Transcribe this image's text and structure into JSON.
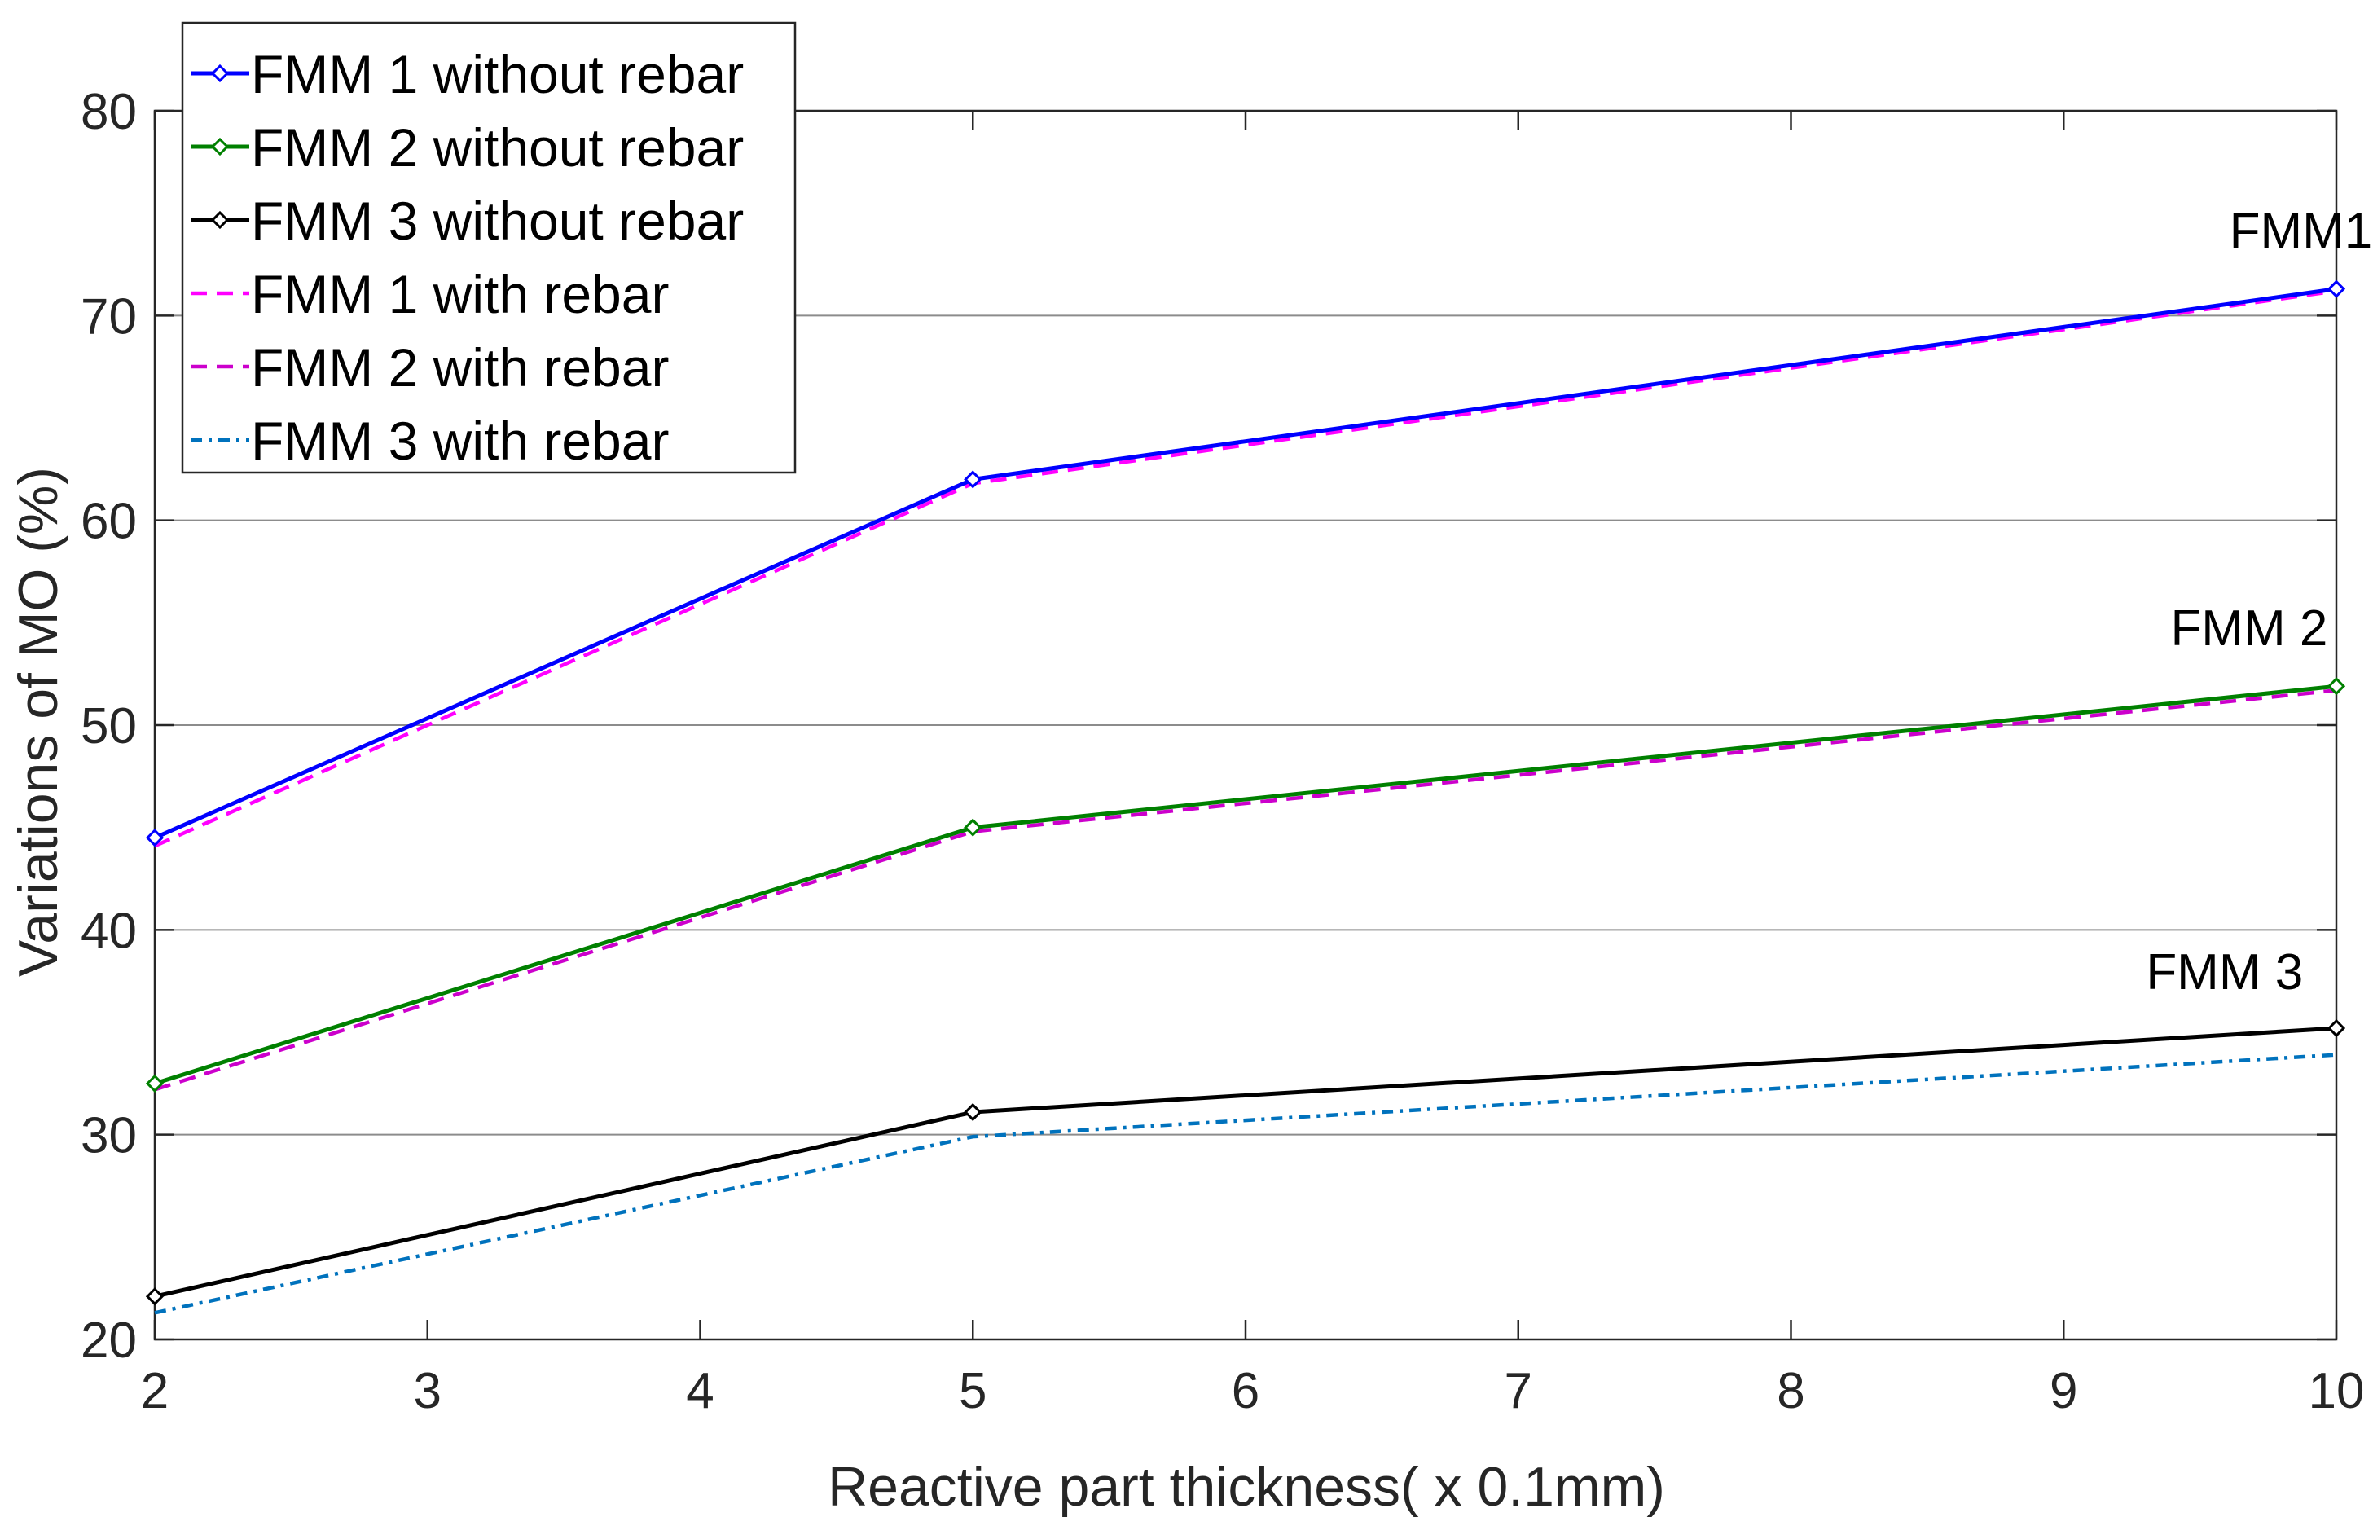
{
  "chart_data": {
    "type": "line",
    "title": "",
    "xlabel": "Reactive part thickness( x 0.1mm)",
    "ylabel": "Variations of MO (%)",
    "xlim": [
      2,
      10
    ],
    "ylim": [
      20,
      80
    ],
    "xticks": [
      2,
      3,
      4,
      5,
      6,
      7,
      8,
      9,
      10
    ],
    "yticks": [
      20,
      30,
      40,
      50,
      60,
      70,
      80
    ],
    "xtick_labels": [
      "2",
      "3",
      "4",
      "5",
      "6",
      "7",
      "8",
      "9",
      "10"
    ],
    "ytick_labels": [
      "20",
      "30",
      "40",
      "50",
      "60",
      "70",
      "80"
    ],
    "grid": "horizontal",
    "legend_position": "top-left",
    "x": [
      2,
      5,
      10
    ],
    "series": [
      {
        "name": "FMM 1 without rebar",
        "values": [
          44.5,
          62.0,
          71.3
        ],
        "color": "#0000ff",
        "style": "solid",
        "marker": "diamond"
      },
      {
        "name": "FMM 2 without rebar",
        "values": [
          32.5,
          45.0,
          51.9
        ],
        "color": "#008000",
        "style": "solid",
        "marker": "diamond"
      },
      {
        "name": "FMM 3 without rebar",
        "values": [
          22.1,
          31.1,
          35.2
        ],
        "color": "#000000",
        "style": "solid",
        "marker": "diamond"
      },
      {
        "name": "FMM 1 with rebar",
        "values": [
          44.1,
          61.8,
          71.2
        ],
        "color": "#ff00ff",
        "style": "dashed",
        "marker": "none"
      },
      {
        "name": "FMM 2 with rebar",
        "values": [
          32.2,
          44.8,
          51.7
        ],
        "color": "#cc00cc",
        "style": "dashed",
        "marker": "none"
      },
      {
        "name": "FMM 3 with rebar",
        "values": [
          21.3,
          29.9,
          33.9
        ],
        "color": "#0072bd",
        "style": "dashdot",
        "marker": "none"
      }
    ],
    "annotations": [
      {
        "text": "FMM1",
        "x": 9.87,
        "y": 73.3
      },
      {
        "text": "FMM 2",
        "x": 9.68,
        "y": 53.9
      },
      {
        "text": "FMM 3",
        "x": 9.59,
        "y": 37.1
      }
    ]
  }
}
